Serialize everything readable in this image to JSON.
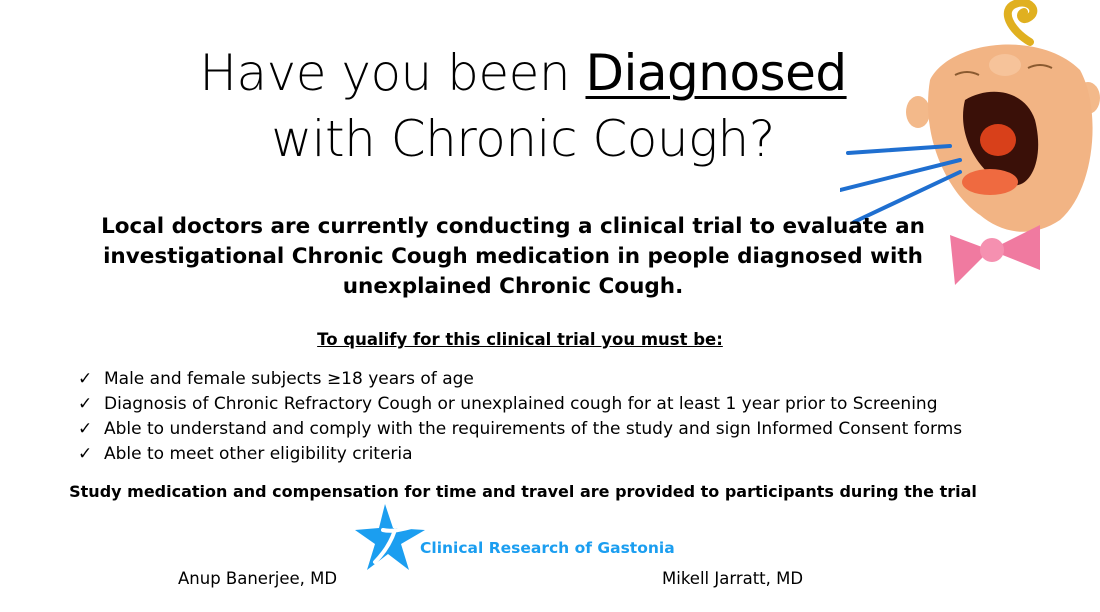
{
  "title": {
    "line1_prefix": "Have you been ",
    "line1_emphasis": "Diagnosed",
    "line2": "with Chronic Cough?"
  },
  "intro": "Local doctors are currently conducting a clinical trial to evaluate an investigational Chronic Cough medication in people diagnosed with unexplained Chronic Cough.",
  "qualify_heading": "To qualify for this clinical trial you must be:",
  "criteria": [
    "Male and female subjects ≥18 years of age",
    "Diagnosis of Chronic Refractory Cough or unexplained cough for at least 1 year prior to Screening",
    "Able to understand and comply with the requirements of the study and sign Informed Consent forms",
    "Able to meet other eligibility criteria"
  ],
  "check_glyph": "✓",
  "provided_note": "Study medication and compensation for time and travel are provided to participants during the trial",
  "logo": {
    "text": "Clinical Research of Gastonia",
    "icon": "star-person-icon",
    "color": "#1b9ef0"
  },
  "doctors": [
    "Anup Banerjee, MD",
    "Mikell Jarratt, MD"
  ],
  "illustration": "coughing-baby-face-icon"
}
